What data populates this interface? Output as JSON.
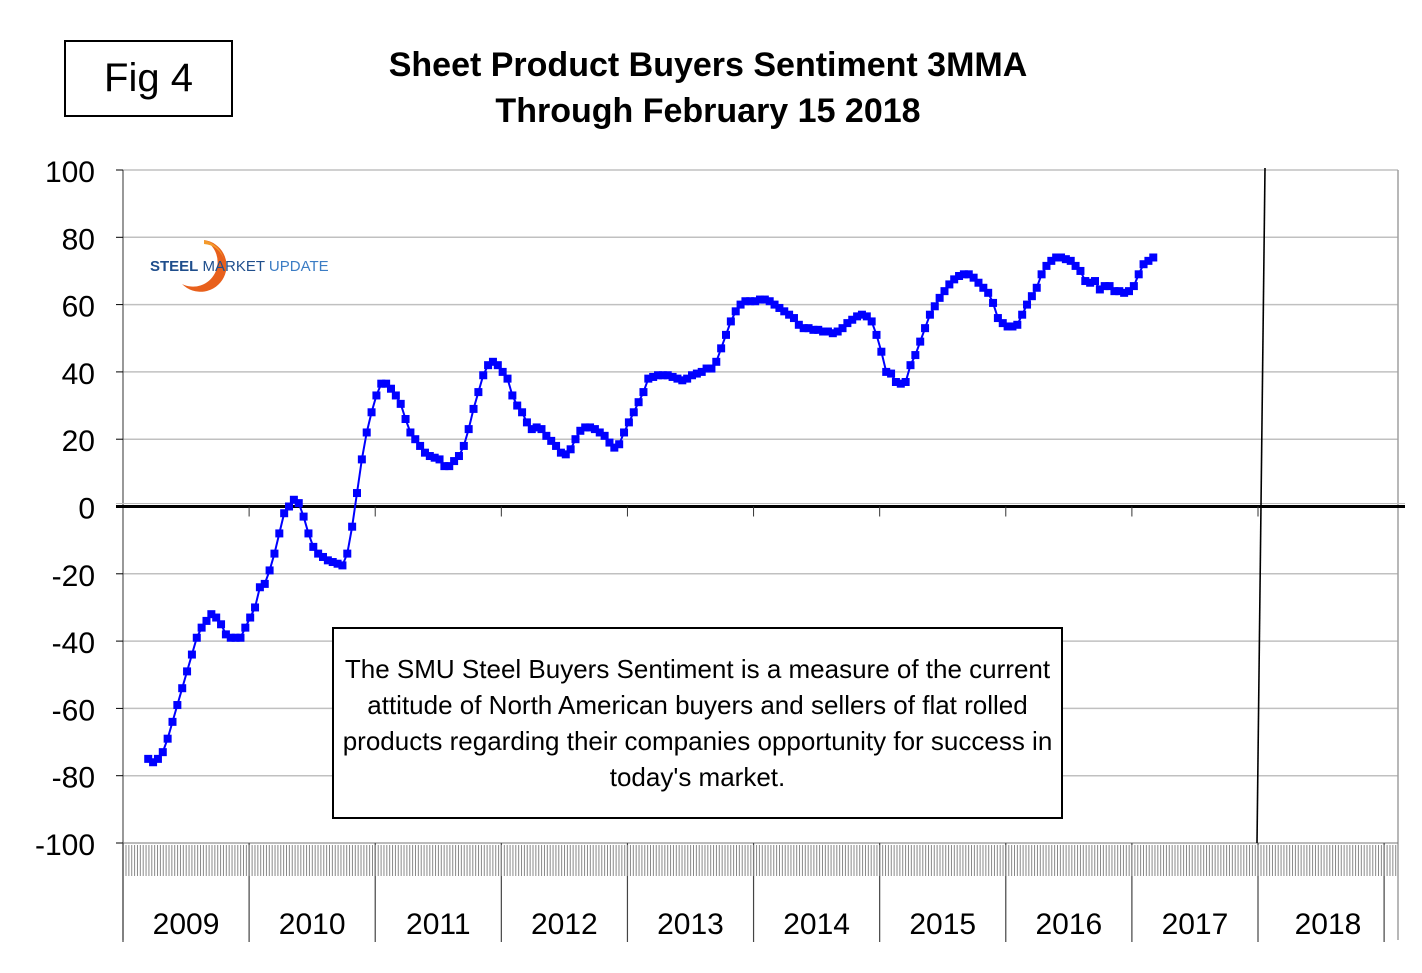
{
  "figure_label": "Fig 4",
  "title_line1": "Sheet Product Buyers Sentiment 3MMA",
  "title_line2": "Through February 15 2018",
  "logo": {
    "word1": "STEEL",
    "word2": "MARKET",
    "word3": "UPDATE",
    "icon": "orange-swoosh-icon"
  },
  "note": "The SMU Steel Buyers Sentiment is a measure of the current attitude of North American buyers and sellers of flat rolled products regarding their companies opportunity for success in today's market.",
  "colors": {
    "series": "#0000ff",
    "grid": "#c0c0c0",
    "axis": "#000000",
    "frame": "#a0a0a0"
  },
  "chart_data": {
    "type": "line",
    "title": "Sheet Product Buyers Sentiment 3MMA Through February 15 2018",
    "xlabel": "",
    "ylabel": "",
    "ylim": [
      -100,
      100
    ],
    "yticks": [
      100,
      80,
      60,
      40,
      20,
      0,
      -20,
      -40,
      -60,
      -80,
      -100
    ],
    "xlim_years": [
      2009,
      2019
    ],
    "year_labels": [
      "2009",
      "2010",
      "2011",
      "2012",
      "2013",
      "2014",
      "2015",
      "2016",
      "2017",
      "2018"
    ],
    "grid": true,
    "marker": "square",
    "vertical_marker_line_at": 2018.0,
    "series": [
      {
        "name": "Sentiment 3MMA",
        "x_start": 2009.2,
        "x_step_years": 0.0385,
        "values": [
          -75,
          -76,
          -75,
          -73,
          -69,
          -64,
          -59,
          -54,
          -49,
          -44,
          -39,
          -36,
          -34,
          -32,
          -33,
          -35,
          -38,
          -39,
          -39,
          -39,
          -36,
          -33,
          -30,
          -24,
          -23,
          -19,
          -14,
          -8,
          -2,
          0,
          2,
          1,
          -3,
          -8,
          -12,
          -14,
          -15,
          -16,
          -16.5,
          -17,
          -17.5,
          -14,
          -6,
          4,
          14,
          22,
          28,
          33,
          36.5,
          36.5,
          35,
          33,
          30.5,
          26,
          22,
          20,
          18,
          16,
          15,
          14.5,
          14,
          12,
          12,
          13.5,
          15,
          18,
          23,
          29,
          34,
          39,
          42,
          43,
          42,
          40,
          38,
          33,
          30,
          28,
          25,
          23,
          23.5,
          23,
          21,
          19.5,
          18,
          16,
          15.5,
          17,
          20,
          22.5,
          23.5,
          23.5,
          23,
          22,
          21,
          19,
          17.5,
          18.5,
          22,
          25,
          28,
          31,
          34,
          38,
          38.5,
          39,
          39,
          39,
          38.5,
          38,
          37.5,
          38,
          39,
          39.5,
          40,
          41,
          41,
          43,
          47,
          51,
          55,
          58,
          60,
          61,
          61,
          61,
          61.5,
          61.5,
          61,
          60,
          59,
          58,
          57,
          56,
          54,
          53,
          53,
          52.5,
          52.5,
          52,
          52,
          51.5,
          52,
          53,
          54.5,
          55.5,
          56.5,
          57,
          56.5,
          55,
          51,
          46,
          40,
          39.5,
          37,
          36.5,
          37,
          42,
          45,
          49,
          53,
          57,
          59.5,
          62,
          64,
          66,
          67.5,
          68.5,
          69,
          69,
          68,
          66.5,
          65,
          63.5,
          60.5,
          56,
          54.5,
          53.5,
          53.5,
          54,
          57,
          60,
          62.5,
          65,
          69,
          71.5,
          73,
          74,
          74,
          73.5,
          73,
          71.5,
          70,
          67,
          66.5,
          67,
          64.5,
          65.5,
          65.5,
          64,
          64,
          63.5,
          64,
          65.5,
          69,
          72,
          73,
          74
        ]
      }
    ]
  }
}
